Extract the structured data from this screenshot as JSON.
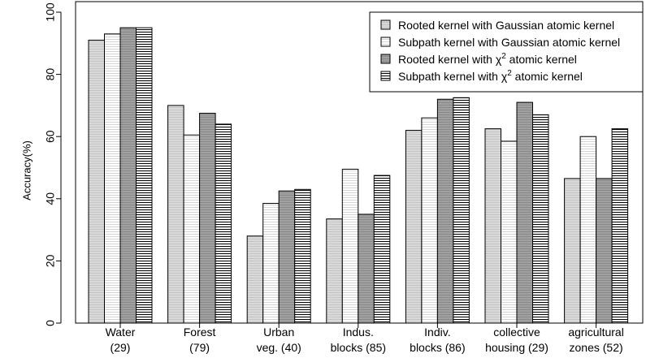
{
  "chart_data": {
    "type": "bar",
    "title": "",
    "xlabel": "",
    "ylabel": "Accuracy(%)",
    "ylim": [
      0,
      100
    ],
    "yticks": [
      0,
      20,
      40,
      60,
      80,
      100
    ],
    "grid": false,
    "legend_position": "top-right",
    "categories": [
      [
        "Water",
        "(29)"
      ],
      [
        "Forest",
        "(79)"
      ],
      [
        "Urban",
        "veg. (40)"
      ],
      [
        "Indus.",
        "blocks (85)"
      ],
      [
        "Indiv.",
        "blocks (86)"
      ],
      [
        "collective",
        "housing (29)"
      ],
      [
        "agricultural",
        "zones (52)"
      ]
    ],
    "series": [
      {
        "name": "Rooted kernel with Gaussian atomic kernel",
        "legend": {
          "pre": "Rooted kernel with Gaussian atomic kernel",
          "sup": "",
          "post": ""
        },
        "fill": "#d9d9d9",
        "pattern": "light-hatch",
        "values": [
          91,
          70,
          28,
          33.5,
          62,
          62.5,
          46.5
        ]
      },
      {
        "name": "Subpath kernel with Gaussian atomic kernel",
        "legend": {
          "pre": "Subpath kernel with Gaussian atomic kernel",
          "sup": "",
          "post": ""
        },
        "fill": "#ffffff",
        "pattern": "light-hatch",
        "values": [
          93,
          60.5,
          38.5,
          49.5,
          66,
          58.5,
          60
        ]
      },
      {
        "name": "Rooted kernel with chi^2 atomic kernel",
        "legend": {
          "pre": "Rooted kernel with χ",
          "sup": "2",
          "post": " atomic kernel"
        },
        "fill": "#a0a0a0",
        "pattern": "dark-hatch",
        "values": [
          95,
          67.5,
          42.5,
          35,
          72,
          71,
          46.5
        ]
      },
      {
        "name": "Subpath kernel with chi^2 atomic kernel",
        "legend": {
          "pre": "Subpath kernel with χ",
          "sup": "2",
          "post": " atomic kernel"
        },
        "fill": "#ffffff",
        "pattern": "bold-hatch",
        "values": [
          95,
          64,
          43,
          47.5,
          72.5,
          67,
          62.5
        ]
      }
    ]
  }
}
